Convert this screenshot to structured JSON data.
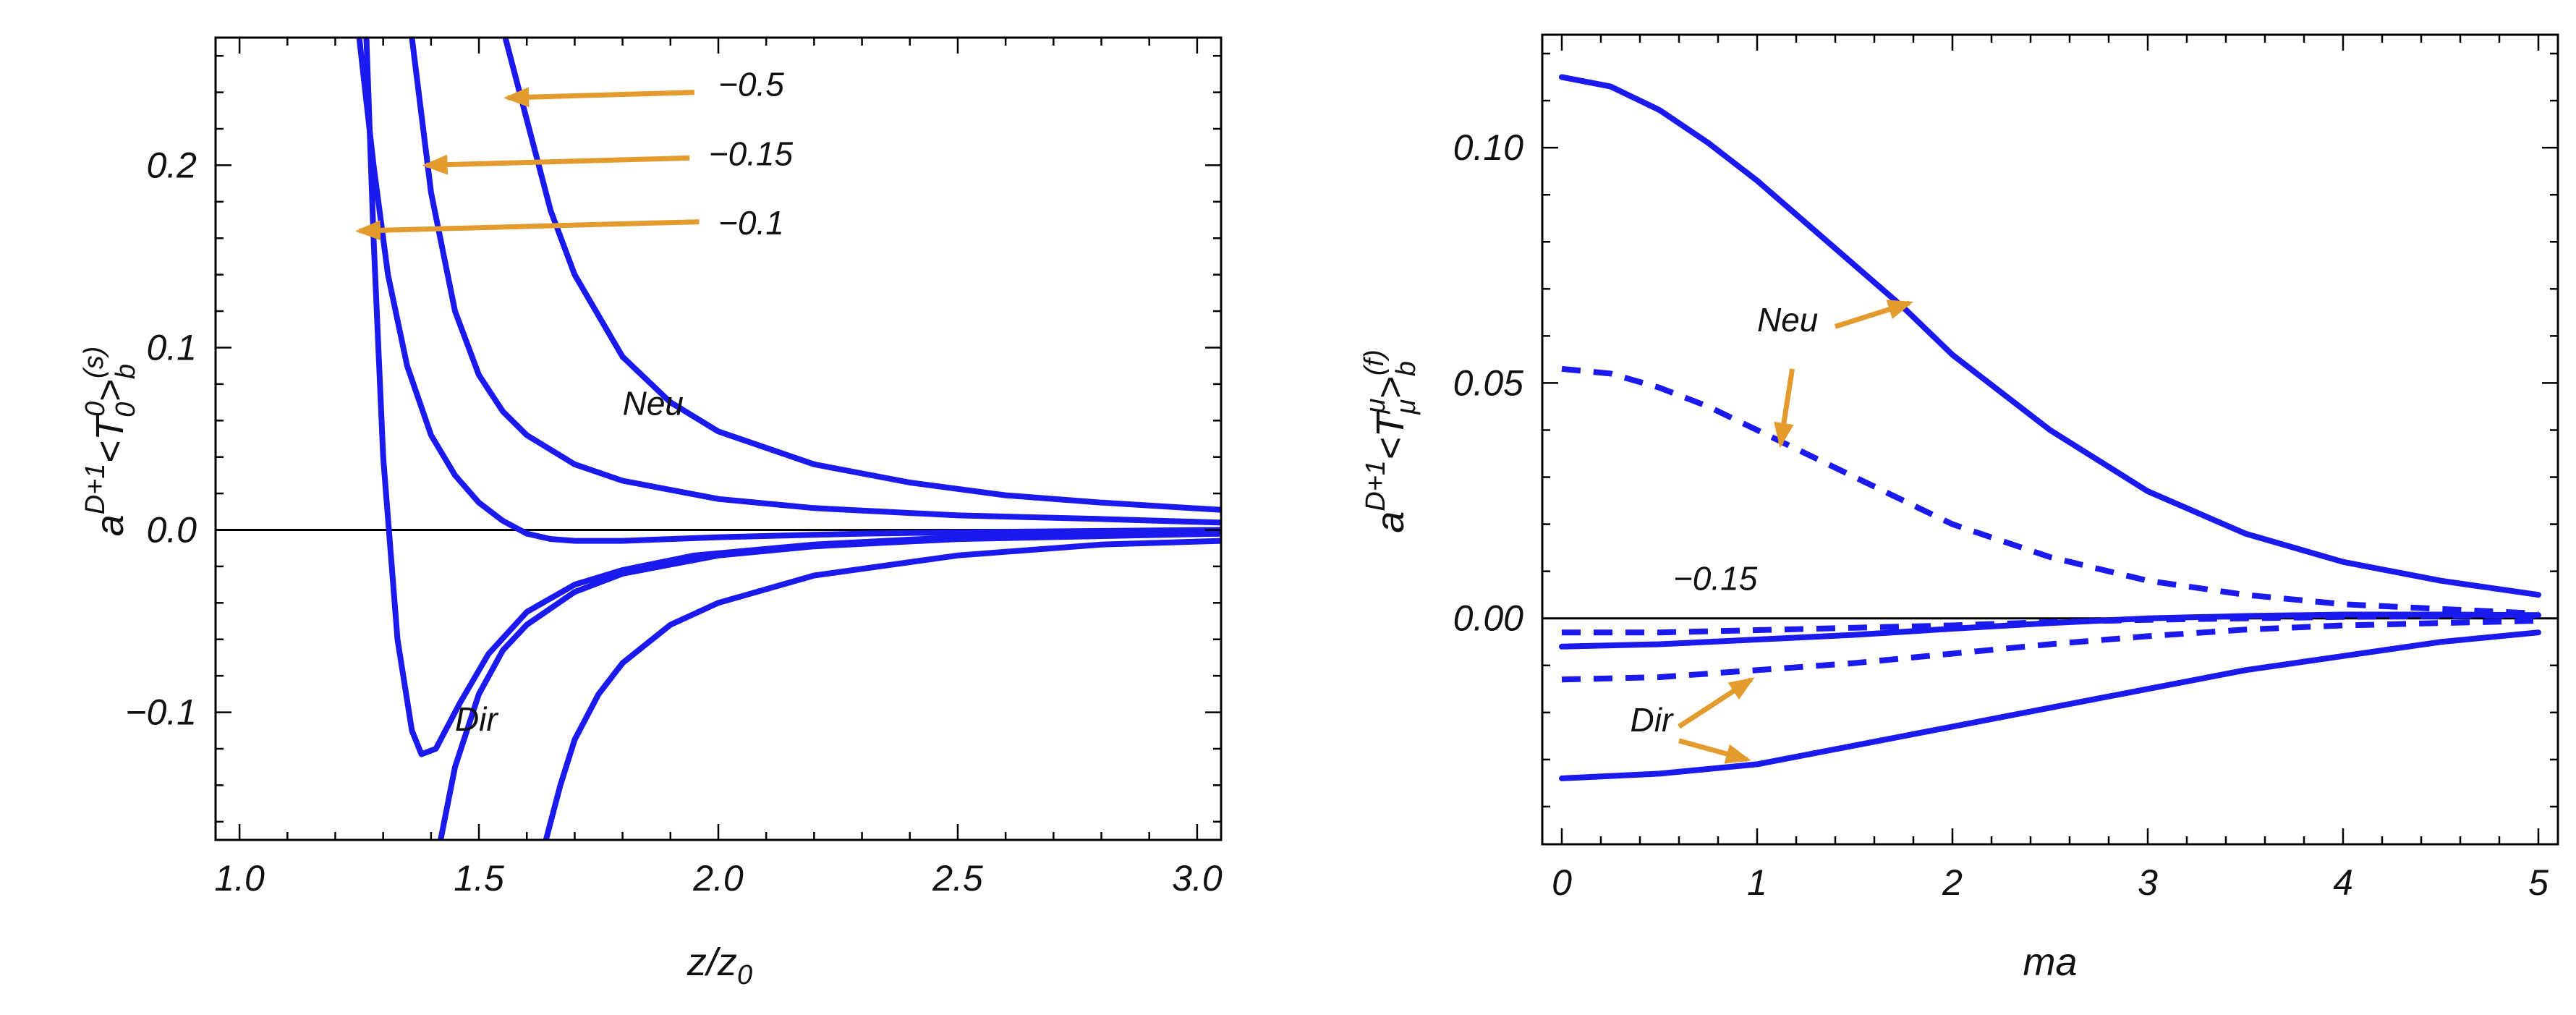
{
  "chart_data": [
    {
      "type": "line",
      "xlabel": "z/z",
      "xlabel_sub": "0",
      "ylabel": {
        "prefix": "a",
        "prefix_sup": "D+1",
        "open": "<T",
        "tensor_sup": "0",
        "tensor_sub": "0",
        "close": ">",
        "close_sub": "b",
        "close_sup": "(s)"
      },
      "xlim": [
        0.95,
        3.05
      ],
      "ylim": [
        -0.17,
        0.27
      ],
      "xticks": [
        1.0,
        1.5,
        2.0,
        2.5,
        3.0
      ],
      "xtick_labels": [
        "1.0",
        "1.5",
        "2.0",
        "2.5",
        "3.0"
      ],
      "yticks": [
        -0.1,
        0.0,
        0.1,
        0.2
      ],
      "ytick_labels": [
        "−0.1",
        "0.0",
        "0.1",
        "0.2"
      ],
      "series": [
        {
          "name": "Neu, -0.5",
          "style": "solid",
          "x": [
            1.555,
            1.6,
            1.65,
            1.7,
            1.8,
            1.9,
            2.0,
            2.2,
            2.4,
            2.6,
            2.8,
            3.05
          ],
          "y": [
            0.27,
            0.225,
            0.175,
            0.14,
            0.095,
            0.07,
            0.054,
            0.036,
            0.026,
            0.019,
            0.015,
            0.011
          ]
        },
        {
          "name": "Neu, -0.15",
          "style": "solid",
          "x": [
            1.36,
            1.4,
            1.45,
            1.5,
            1.55,
            1.6,
            1.7,
            1.8,
            2.0,
            2.2,
            2.5,
            2.8,
            3.05
          ],
          "y": [
            0.27,
            0.185,
            0.12,
            0.085,
            0.065,
            0.052,
            0.036,
            0.027,
            0.017,
            0.012,
            0.008,
            0.006,
            0.004
          ]
        },
        {
          "name": "Neu, -0.1",
          "style": "solid",
          "x": [
            1.25,
            1.28,
            1.31,
            1.35,
            1.4,
            1.45,
            1.5,
            1.55,
            1.6,
            1.65,
            1.7,
            1.8,
            2.0,
            2.3,
            2.6,
            3.05
          ],
          "y": [
            0.27,
            0.2,
            0.14,
            0.09,
            0.052,
            0.03,
            0.015,
            0.005,
            -0.002,
            -0.005,
            -0.006,
            -0.006,
            -0.004,
            -0.002,
            -0.001,
            0.0
          ]
        },
        {
          "name": "Dir, -0.1",
          "style": "solid",
          "x": [
            1.265,
            1.28,
            1.3,
            1.33,
            1.36,
            1.38,
            1.41,
            1.46,
            1.52,
            1.6,
            1.7,
            1.8,
            1.95,
            2.2,
            2.5,
            3.05
          ],
          "y": [
            0.27,
            0.16,
            0.04,
            -0.06,
            -0.11,
            -0.123,
            -0.12,
            -0.095,
            -0.068,
            -0.045,
            -0.03,
            -0.022,
            -0.014,
            -0.008,
            -0.004,
            -0.002
          ]
        },
        {
          "name": "Dir, -0.15",
          "style": "solid",
          "x": [
            1.42,
            1.45,
            1.5,
            1.55,
            1.6,
            1.7,
            1.8,
            2.0,
            2.2,
            2.5,
            3.05
          ],
          "y": [
            -0.17,
            -0.13,
            -0.09,
            -0.066,
            -0.052,
            -0.034,
            -0.024,
            -0.014,
            -0.009,
            -0.005,
            -0.002
          ]
        },
        {
          "name": "Dir, -0.5",
          "style": "solid",
          "x": [
            1.64,
            1.67,
            1.7,
            1.75,
            1.8,
            1.9,
            2.0,
            2.2,
            2.5,
            2.8,
            3.05
          ],
          "y": [
            -0.17,
            -0.14,
            -0.115,
            -0.09,
            -0.073,
            -0.052,
            -0.04,
            -0.025,
            -0.014,
            -0.008,
            -0.006
          ]
        }
      ],
      "annotations": [
        {
          "text": "−0.5",
          "x": 2.0,
          "y": 0.238
        },
        {
          "text": "−0.15",
          "x": 1.98,
          "y": 0.2
        },
        {
          "text": "−0.1",
          "x": 2.0,
          "y": 0.162
        },
        {
          "text": "Neu",
          "x": 1.8,
          "y": 0.063
        },
        {
          "text": "Dir",
          "x": 1.45,
          "y": -0.11
        }
      ],
      "arrows": [
        {
          "from": [
            1.95,
            0.24
          ],
          "to": [
            1.56,
            0.237
          ]
        },
        {
          "from": [
            1.94,
            0.204
          ],
          "to": [
            1.39,
            0.2
          ]
        },
        {
          "from": [
            1.96,
            0.169
          ],
          "to": [
            1.25,
            0.164
          ]
        }
      ]
    },
    {
      "type": "line",
      "xlabel": "ma",
      "ylabel": {
        "prefix": "a",
        "prefix_sup": "D+1",
        "open": "<T",
        "tensor_sup": "μ",
        "tensor_sub": "μ",
        "close": ">",
        "close_sub": "b",
        "close_sup": "(f)"
      },
      "xlim": [
        -0.1,
        5.1
      ],
      "ylim": [
        -0.048,
        0.124
      ],
      "xticks": [
        0,
        1,
        2,
        3,
        4,
        5
      ],
      "xtick_labels": [
        "0",
        "1",
        "2",
        "3",
        "4",
        "5"
      ],
      "yticks": [
        0.0,
        0.05,
        0.1
      ],
      "ytick_labels": [
        "0.00",
        "0.05",
        "0.10"
      ],
      "series": [
        {
          "name": "Neu solid",
          "style": "solid",
          "x": [
            0,
            0.25,
            0.5,
            0.75,
            1,
            1.25,
            1.5,
            1.75,
            2,
            2.5,
            3,
            3.5,
            4,
            4.5,
            5
          ],
          "y": [
            0.115,
            0.113,
            0.108,
            0.101,
            0.093,
            0.084,
            0.075,
            0.066,
            0.056,
            0.04,
            0.027,
            0.018,
            0.012,
            0.008,
            0.005
          ]
        },
        {
          "name": "Neu dashed",
          "style": "dashed",
          "x": [
            0,
            0.25,
            0.5,
            0.75,
            1,
            1.25,
            1.5,
            1.75,
            2,
            2.5,
            3,
            3.5,
            4,
            4.5,
            5
          ],
          "y": [
            0.053,
            0.052,
            0.049,
            0.045,
            0.04,
            0.035,
            0.03,
            0.025,
            0.02,
            0.013,
            0.008,
            0.005,
            0.003,
            0.002,
            0.001
          ]
        },
        {
          "name": "-0.15 dashed upper",
          "style": "dashed",
          "x": [
            0,
            0.5,
            1,
            1.5,
            2,
            2.5,
            3,
            3.5,
            4,
            4.5,
            5
          ],
          "y": [
            -0.003,
            -0.003,
            -0.0025,
            -0.002,
            -0.0015,
            -0.0008,
            -0.0003,
            0.0,
            0.0003,
            0.0005,
            0.0006
          ]
        },
        {
          "name": "-0.15 solid",
          "style": "solid",
          "x": [
            0,
            0.5,
            1,
            1.5,
            2,
            2.5,
            3,
            3.5,
            4,
            4.5,
            5
          ],
          "y": [
            -0.006,
            -0.0055,
            -0.0045,
            -0.0035,
            -0.0022,
            -0.001,
            0.0,
            0.0005,
            0.0008,
            0.0008,
            0.0007
          ]
        },
        {
          "name": "Dir dashed",
          "style": "dashed",
          "x": [
            0,
            0.5,
            1,
            1.5,
            2,
            2.5,
            3,
            3.5,
            4,
            4.5,
            5
          ],
          "y": [
            -0.013,
            -0.0125,
            -0.011,
            -0.0095,
            -0.0075,
            -0.0055,
            -0.0038,
            -0.0024,
            -0.0015,
            -0.001,
            -0.0005
          ]
        },
        {
          "name": "Dir solid",
          "style": "solid",
          "x": [
            0,
            0.5,
            1,
            1.5,
            2,
            2.5,
            3,
            3.5,
            4,
            4.5,
            5
          ],
          "y": [
            -0.034,
            -0.033,
            -0.031,
            -0.027,
            -0.023,
            -0.019,
            -0.015,
            -0.011,
            -0.008,
            -0.005,
            -0.003
          ]
        }
      ],
      "annotations": [
        {
          "text": "Neu",
          "x": 1.0,
          "y": 0.061
        },
        {
          "text": "−0.15",
          "x": 0.57,
          "y": 0.006
        },
        {
          "text": "Dir",
          "x": 0.35,
          "y": -0.024
        }
      ],
      "arrows": [
        {
          "from": [
            1.4,
            0.062
          ],
          "to": [
            1.78,
            0.067
          ]
        },
        {
          "from": [
            1.18,
            0.053
          ],
          "to": [
            1.12,
            0.037
          ]
        },
        {
          "from": [
            0.6,
            -0.023
          ],
          "to": [
            0.97,
            -0.013
          ]
        },
        {
          "from": [
            0.6,
            -0.026
          ],
          "to": [
            0.95,
            -0.03
          ]
        }
      ]
    }
  ],
  "colors": {
    "curve": "#1a1aee",
    "arrow": "#e39b2e",
    "axis": "#000000",
    "zero_line": "#000000"
  }
}
